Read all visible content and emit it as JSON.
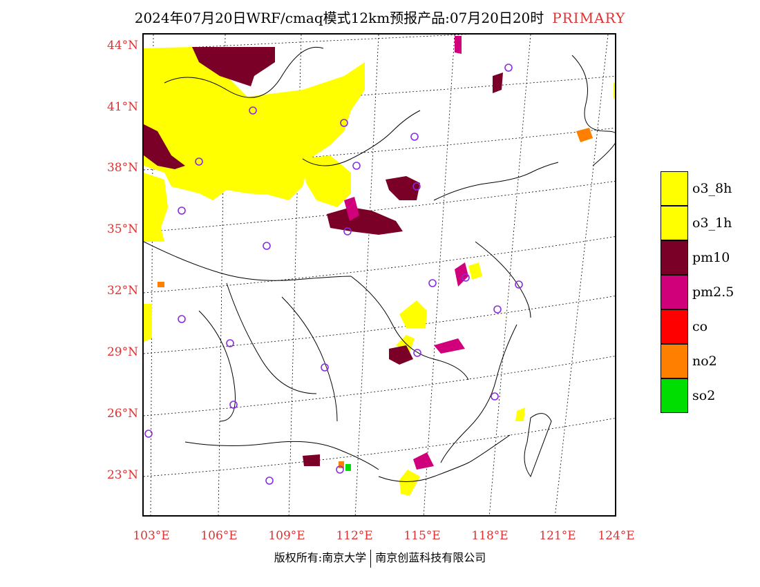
{
  "title": {
    "main": "2024年07月20日WRF/cmaq模式12km预报产品:07月20日20时",
    "tag": "PRIMARY"
  },
  "lat_ticks": [
    "44°N",
    "41°N",
    "38°N",
    "35°N",
    "32°N",
    "29°N",
    "26°N",
    "23°N"
  ],
  "lon_ticks": [
    "103°E",
    "106°E",
    "109°E",
    "112°E",
    "115°E",
    "118°E",
    "121°E",
    "124°E"
  ],
  "legend": [
    {
      "label": "o3_8h",
      "color": "#ffff00"
    },
    {
      "label": "o3_1h",
      "color": "#ffff00"
    },
    {
      "label": "pm10",
      "color": "#7a0028"
    },
    {
      "label": "pm2.5",
      "color": "#d0007a"
    },
    {
      "label": "co",
      "color": "#ff0000"
    },
    {
      "label": "no2",
      "color": "#ff8000"
    },
    {
      "label": "so2",
      "color": "#00dd00"
    }
  ],
  "copyright": {
    "left": "版权所有:南京大学",
    "right": "南京创蓝科技有限公司"
  }
}
